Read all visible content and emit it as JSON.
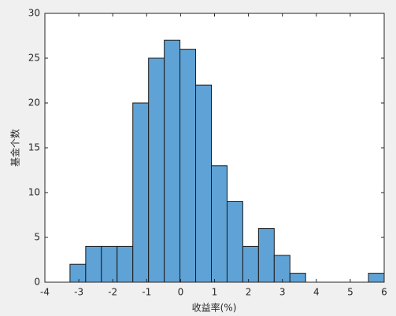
{
  "chart_data": {
    "type": "histogram",
    "bins": [
      -3.26,
      -2.797,
      -2.334,
      -1.871,
      -1.408,
      -0.945,
      -0.482,
      -0.019,
      0.444,
      0.907,
      1.37,
      1.833,
      2.296,
      2.759,
      3.222,
      3.685,
      4.148,
      4.611,
      5.074,
      5.537,
      6.0
    ],
    "values": [
      2,
      4,
      4,
      4,
      20,
      25,
      27,
      26,
      22,
      13,
      9,
      4,
      6,
      3,
      1,
      0,
      0,
      0,
      0,
      1
    ],
    "color": "#5fa2d6",
    "xlabel": "收益率(%)",
    "ylabel": "基金个数",
    "xlim": [
      -4,
      6
    ],
    "xticks": [
      -4,
      -3,
      -2,
      -1,
      0,
      1,
      2,
      3,
      4,
      5,
      6
    ],
    "ylim": [
      0,
      30
    ],
    "yticks": [
      0,
      5,
      10,
      15,
      20,
      25,
      30
    ]
  }
}
